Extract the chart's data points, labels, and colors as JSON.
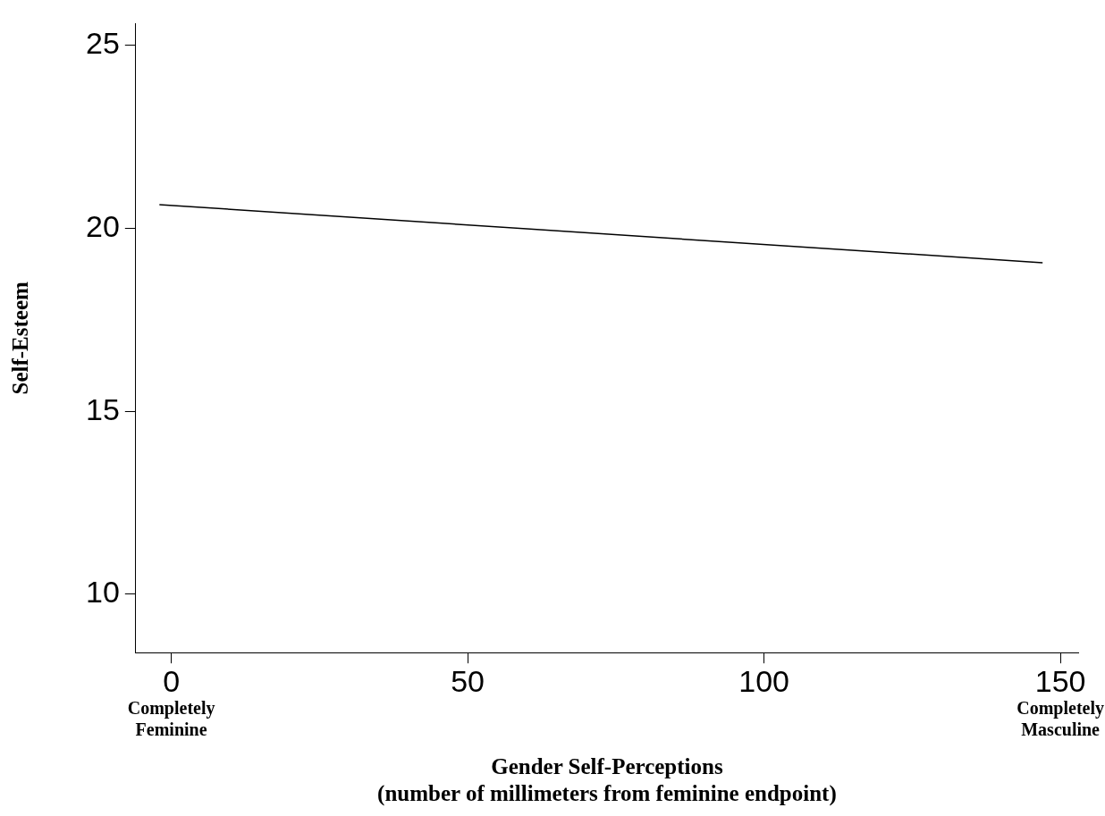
{
  "chart_data": {
    "type": "line",
    "xlabel": "Gender Self-Perceptions\n(number of millimeters from feminine endpoint)",
    "ylabel": "Self-Esteem",
    "x": [
      -2,
      147
    ],
    "series": [
      {
        "color": "#000000",
        "values": [
          20.65,
          19.06
        ]
      }
    ],
    "xlim": [
      -6,
      153
    ],
    "xticks": [
      0,
      50,
      100,
      150
    ],
    "ylim": [
      8.4,
      25.6
    ],
    "yticks": [
      10,
      15,
      20,
      25
    ],
    "grid": false,
    "legend": false,
    "marker": "none",
    "line_style": "solid",
    "annotations": [
      "Completely Feminine",
      "Completely Masculine"
    ]
  }
}
